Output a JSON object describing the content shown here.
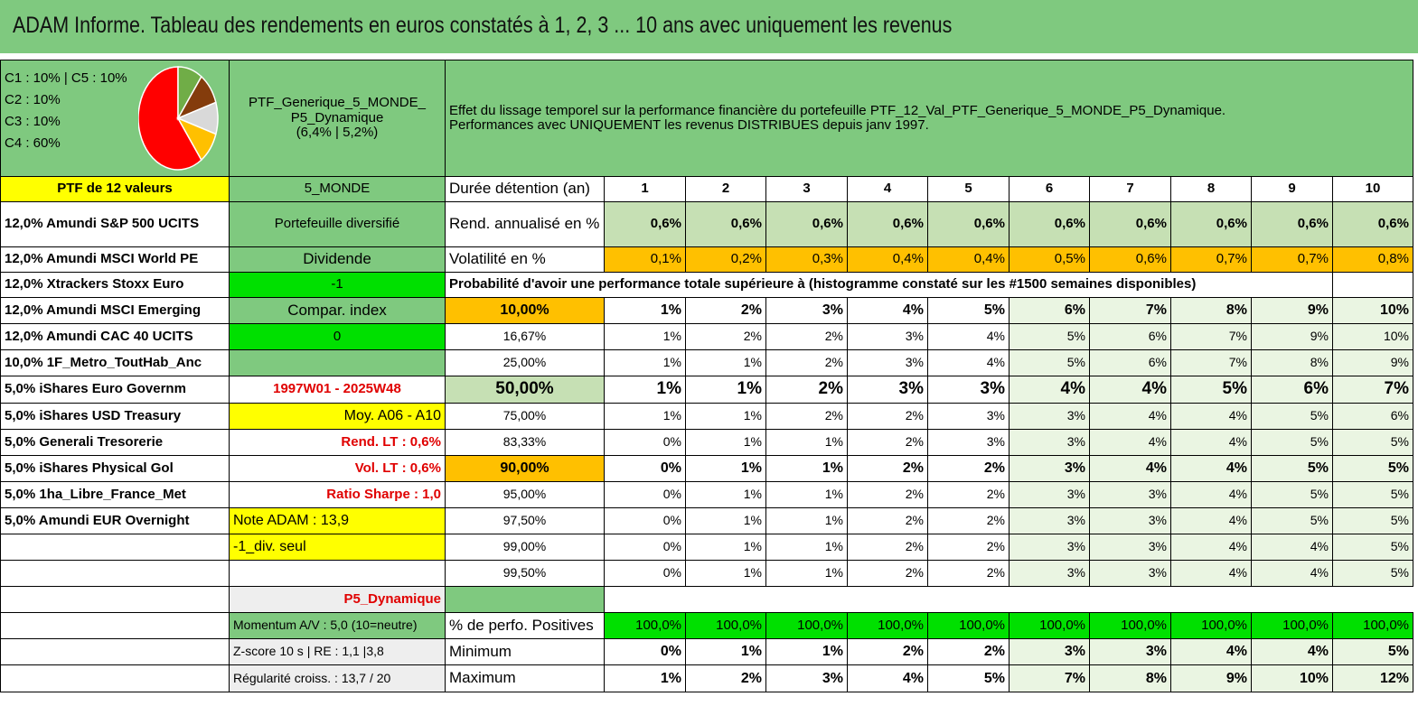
{
  "banner": {
    "title": "ADAM Informe. Tableau des rendements en euros constatés à 1, 2, 3 ... 10 ans avec uniquement les revenus"
  },
  "allocation": {
    "lines": [
      "C1 : 10% | C5 : 10%",
      "C2 : 10%",
      "C3 : 10%",
      "C4 : 60%"
    ],
    "pie": [
      {
        "label": "C4",
        "value": 60,
        "color": "#ff0000"
      },
      {
        "label": "C1",
        "value": 10,
        "color": "#70ad47"
      },
      {
        "label": "C2",
        "value": 10,
        "color": "#843c0c"
      },
      {
        "label": "C3",
        "value": 10,
        "color": "#d9d9d9"
      },
      {
        "label": "C5",
        "value": 10,
        "color": "#ffc000"
      }
    ]
  },
  "portfolio": {
    "name_line1": "PTF_Generique_5_MONDE_",
    "name_line2": "P5_Dynamique",
    "name_line3": "(6,4% | 5,2%)",
    "description_line1": "Effet du lissage temporel sur la performance financière du portefeuille PTF_12_Val_PTF_Generique_5_MONDE_P5_Dynamique.",
    "description_line2": "Performances avec UNIQUEMENT les revenus DISTRIBUES depuis janv 1997."
  },
  "header_row": {
    "holdings_title": "PTF de 12 valeurs",
    "zone": "5_MONDE",
    "duration_label": "Durée détention (an)",
    "years": [
      "1",
      "2",
      "3",
      "4",
      "5",
      "6",
      "7",
      "8",
      "9",
      "10"
    ]
  },
  "holdings": [
    "12,0% Amundi S&P 500 UCITS",
    "12,0% Amundi MSCI World PE",
    "12,0% Xtrackers Stoxx Euro",
    "12,0% Amundi MSCI Emerging",
    "12,0% Amundi CAC 40 UCITS",
    "10,0% 1F_Metro_ToutHab_Anc",
    "5,0% iShares Euro Governm",
    "5,0% iShares USD Treasury",
    "5,0% Generali Tresorerie",
    "5,0% iShares Physical Gol",
    "5,0% 1ha_Libre_France_Met",
    "5,0% Amundi EUR Overnight",
    "",
    ""
  ],
  "info_col": {
    "diversified": "Portefeuille diversifié",
    "dividend": "Dividende",
    "val_m1": "-1",
    "compar": "Compar. index",
    "val_0": "0",
    "period": "1997W01 - 2025W48",
    "moy": "Moy. A06 - A10",
    "rend_lt": "Rend. LT : 0,6%",
    "vol_lt": "Vol. LT : 0,6%",
    "sharpe": "Ratio Sharpe : 1,0",
    "note": "Note ADAM : 13,9",
    "div_seul": "-1_div. seul",
    "profile": "P5_Dynamique",
    "momentum": "Momentum A/V : 5,0 (10=neutre)",
    "zscore": "Z-score 10 s | RE : 1,1 |3,8",
    "regularite": "Régularité croiss. : 13,7 / 20"
  },
  "stats": {
    "rend_label": "Rend. annualisé en %",
    "rend": [
      "0,6%",
      "0,6%",
      "0,6%",
      "0,6%",
      "0,6%",
      "0,6%",
      "0,6%",
      "0,6%",
      "0,6%",
      "0,6%"
    ],
    "vol_label": "Volatilité en %",
    "vol": [
      "0,1%",
      "0,2%",
      "0,3%",
      "0,4%",
      "0,4%",
      "0,5%",
      "0,6%",
      "0,7%",
      "0,7%",
      "0,8%"
    ],
    "prob_title": "Probabilité d'avoir une performance totale supérieure à (histogramme constaté sur les #1500 semaines disponibles)"
  },
  "quantiles": [
    {
      "p": "10,00%",
      "v": [
        "1%",
        "2%",
        "3%",
        "4%",
        "5%",
        "6%",
        "7%",
        "8%",
        "9%",
        "10%"
      ]
    },
    {
      "p": "16,67%",
      "v": [
        "1%",
        "2%",
        "2%",
        "3%",
        "4%",
        "5%",
        "6%",
        "7%",
        "9%",
        "10%"
      ]
    },
    {
      "p": "25,00%",
      "v": [
        "1%",
        "1%",
        "2%",
        "3%",
        "4%",
        "5%",
        "6%",
        "7%",
        "8%",
        "9%"
      ]
    },
    {
      "p": "50,00%",
      "v": [
        "1%",
        "1%",
        "2%",
        "3%",
        "3%",
        "4%",
        "4%",
        "5%",
        "6%",
        "7%"
      ]
    },
    {
      "p": "75,00%",
      "v": [
        "1%",
        "1%",
        "2%",
        "2%",
        "3%",
        "3%",
        "4%",
        "4%",
        "5%",
        "6%"
      ]
    },
    {
      "p": "83,33%",
      "v": [
        "0%",
        "1%",
        "1%",
        "2%",
        "3%",
        "3%",
        "4%",
        "4%",
        "5%",
        "5%"
      ]
    },
    {
      "p": "90,00%",
      "v": [
        "0%",
        "1%",
        "1%",
        "2%",
        "2%",
        "3%",
        "4%",
        "4%",
        "5%",
        "5%"
      ]
    },
    {
      "p": "95,00%",
      "v": [
        "0%",
        "1%",
        "1%",
        "2%",
        "2%",
        "3%",
        "3%",
        "4%",
        "5%",
        "5%"
      ]
    },
    {
      "p": "97,50%",
      "v": [
        "0%",
        "1%",
        "1%",
        "2%",
        "2%",
        "3%",
        "3%",
        "4%",
        "5%",
        "5%"
      ]
    },
    {
      "p": "99,00%",
      "v": [
        "0%",
        "1%",
        "1%",
        "2%",
        "2%",
        "3%",
        "3%",
        "4%",
        "4%",
        "5%"
      ]
    },
    {
      "p": "99,50%",
      "v": [
        "0%",
        "1%",
        "1%",
        "2%",
        "2%",
        "3%",
        "3%",
        "4%",
        "4%",
        "5%"
      ]
    }
  ],
  "summary": {
    "pos_label": "% de perfo. Positives",
    "pos": [
      "100,0%",
      "100,0%",
      "100,0%",
      "100,0%",
      "100,0%",
      "100,0%",
      "100,0%",
      "100,0%",
      "100,0%",
      "100,0%"
    ],
    "min_label": "Minimum",
    "min": [
      "0%",
      "1%",
      "1%",
      "2%",
      "2%",
      "3%",
      "3%",
      "4%",
      "4%",
      "5%"
    ],
    "max_label": "Maximum",
    "max": [
      "1%",
      "2%",
      "3%",
      "4%",
      "5%",
      "7%",
      "8%",
      "9%",
      "10%",
      "12%"
    ]
  }
}
